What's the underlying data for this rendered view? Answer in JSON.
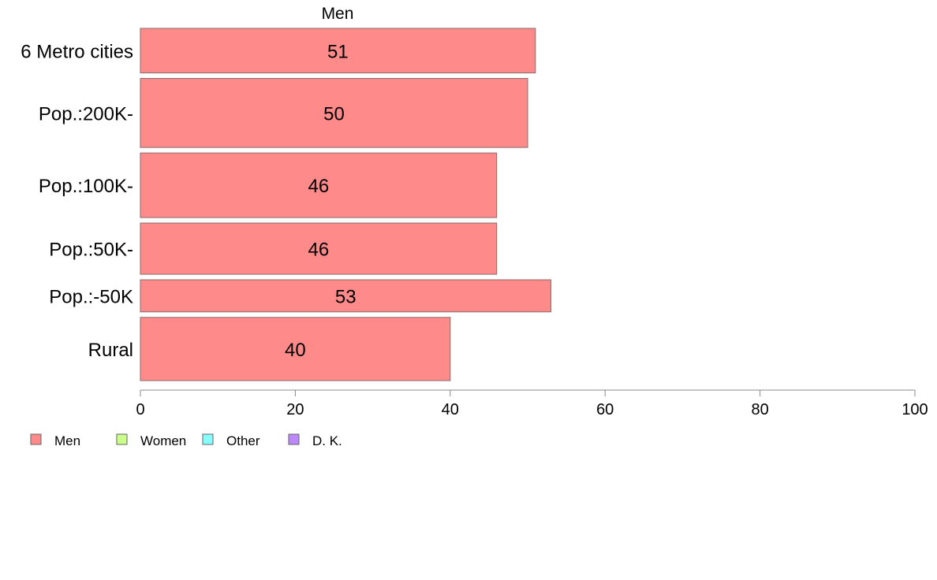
{
  "chart_data": {
    "type": "bar",
    "orientation": "horizontal",
    "title": "Men",
    "xlabel": "",
    "ylabel": "",
    "xlim": [
      0,
      100
    ],
    "x_ticks": [
      0,
      20,
      40,
      60,
      80,
      100
    ],
    "grid": false,
    "legend_placement": "bottom-left",
    "categories": [
      "6 Metro cities",
      "Pop.:200K-",
      "Pop.:100K-",
      "Pop.:50K-",
      "Pop.:-50K",
      "Rural"
    ],
    "category_weights": [
      1.0,
      1.55,
      1.45,
      1.15,
      0.72,
      1.42
    ],
    "series": [
      {
        "name": "Men",
        "color": "#ff8a8a",
        "values": [
          51,
          50,
          46,
          46,
          53,
          40
        ]
      }
    ],
    "legend": [
      {
        "name": "Men",
        "color": "#ff8a8a"
      },
      {
        "name": "Women",
        "color": "#ccff88"
      },
      {
        "name": "Other",
        "color": "#88ffff"
      },
      {
        "name": "D. K.",
        "color": "#bb88ff"
      }
    ]
  }
}
